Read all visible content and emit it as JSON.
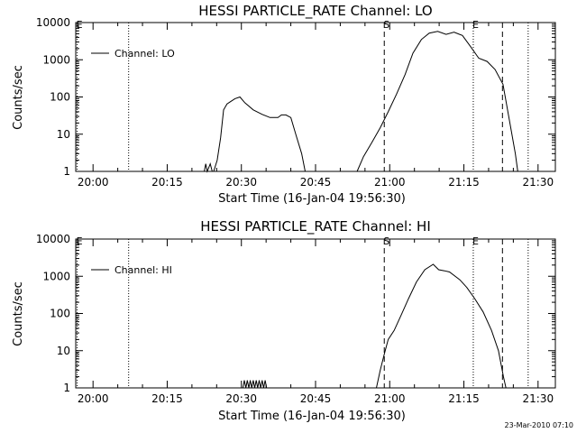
{
  "footer_timestamp": "23-Mar-2010 07:10",
  "chart_data": [
    {
      "type": "line",
      "title": "HESSI PARTICLE_RATE Channel: LO",
      "xlabel": "Start Time (16-Jan-04 19:56:30)",
      "ylabel": "Counts/sec",
      "legend": "Channel: LO",
      "legend_position": "top-left",
      "x_units": "minutes after 19:56:30",
      "xlim": [
        0,
        97
      ],
      "ylim": [
        1,
        10000
      ],
      "y_scale": "log",
      "x_ticks": [
        {
          "label": "20:00",
          "x": 3.5
        },
        {
          "label": "20:15",
          "x": 18.5
        },
        {
          "label": "20:30",
          "x": 33.5
        },
        {
          "label": "20:45",
          "x": 48.5
        },
        {
          "label": "21:00",
          "x": 63.5
        },
        {
          "label": "21:15",
          "x": 78.5
        },
        {
          "label": "21:30",
          "x": 93.5
        }
      ],
      "y_ticks": [
        {
          "label": "1",
          "y": 1
        },
        {
          "label": "10",
          "y": 10
        },
        {
          "label": "100",
          "y": 100
        },
        {
          "label": "1000",
          "y": 1000
        },
        {
          "label": "10000",
          "y": 10000
        }
      ],
      "markers": [
        {
          "x": 0.3,
          "style": "dotted",
          "label": "E"
        },
        {
          "x": 10.7,
          "style": "dotted",
          "label": ""
        },
        {
          "x": 62.4,
          "style": "dashed",
          "label": "S"
        },
        {
          "x": 80.4,
          "style": "dotted",
          "label": "E"
        },
        {
          "x": 86.3,
          "style": "dashed",
          "label": ""
        },
        {
          "x": 91.5,
          "style": "dotted",
          "label": ""
        }
      ],
      "series": [
        {
          "segments": [
            [
              [
                26,
                1
              ],
              [
                26.3,
                1.6
              ],
              [
                26.6,
                1
              ],
              [
                27.2,
                1.6
              ],
              [
                27.6,
                1
              ]
            ],
            [
              [
                27.9,
                1
              ],
              [
                28.6,
                2
              ],
              [
                29.3,
                8
              ],
              [
                29.9,
                45
              ],
              [
                30.6,
                65
              ],
              [
                32.2,
                90
              ],
              [
                33.2,
                100
              ],
              [
                34.2,
                70
              ],
              [
                35.9,
                45
              ],
              [
                37.7,
                34
              ],
              [
                39.3,
                28
              ],
              [
                40.9,
                28
              ],
              [
                41.6,
                33
              ],
              [
                42.5,
                33
              ],
              [
                43.5,
                28
              ],
              [
                44.6,
                9
              ],
              [
                45.7,
                3
              ],
              [
                46.4,
                1
              ]
            ],
            [
              [
                56.9,
                1
              ],
              [
                58.2,
                2.5
              ],
              [
                59.9,
                6
              ],
              [
                61.6,
                15
              ],
              [
                63.2,
                40
              ],
              [
                64.9,
                120
              ],
              [
                66.6,
                400
              ],
              [
                68.2,
                1500
              ],
              [
                69.9,
                3500
              ],
              [
                71.5,
                5200
              ],
              [
                73.2,
                5800
              ],
              [
                74.9,
                4800
              ],
              [
                76.5,
                5500
              ],
              [
                78.2,
                4500
              ],
              [
                79.8,
                2300
              ],
              [
                81.5,
                1100
              ],
              [
                83.2,
                900
              ],
              [
                84.8,
                550
              ],
              [
                86.4,
                220
              ],
              [
                88.1,
                12
              ],
              [
                88.9,
                3
              ],
              [
                89.4,
                1
              ]
            ]
          ]
        }
      ]
    },
    {
      "type": "line",
      "title": "HESSI PARTICLE_RATE Channel: HI",
      "xlabel": "Start Time (16-Jan-04 19:56:30)",
      "ylabel": "Counts/sec",
      "legend": "Channel: HI",
      "legend_position": "top-left",
      "x_units": "minutes after 19:56:30",
      "xlim": [
        0,
        97
      ],
      "ylim": [
        1,
        10000
      ],
      "y_scale": "log",
      "x_ticks": [
        {
          "label": "20:00",
          "x": 3.5
        },
        {
          "label": "20:15",
          "x": 18.5
        },
        {
          "label": "20:30",
          "x": 33.5
        },
        {
          "label": "20:45",
          "x": 48.5
        },
        {
          "label": "21:00",
          "x": 63.5
        },
        {
          "label": "21:15",
          "x": 78.5
        },
        {
          "label": "21:30",
          "x": 93.5
        }
      ],
      "y_ticks": [
        {
          "label": "1",
          "y": 1
        },
        {
          "label": "10",
          "y": 10
        },
        {
          "label": "100",
          "y": 100
        },
        {
          "label": "1000",
          "y": 1000
        },
        {
          "label": "10000",
          "y": 10000
        }
      ],
      "markers": [
        {
          "x": 0.3,
          "style": "dotted",
          "label": "E"
        },
        {
          "x": 10.7,
          "style": "dotted",
          "label": ""
        },
        {
          "x": 62.4,
          "style": "dashed",
          "label": "S"
        },
        {
          "x": 80.4,
          "style": "dotted",
          "label": "E"
        },
        {
          "x": 86.3,
          "style": "dashed",
          "label": ""
        },
        {
          "x": 91.5,
          "style": "dotted",
          "label": ""
        }
      ],
      "series": [
        {
          "segments": [
            [
              [
                33.8,
                1
              ],
              [
                34.1,
                1.6
              ],
              [
                34.4,
                1
              ],
              [
                34.7,
                1.6
              ],
              [
                35.0,
                1
              ],
              [
                35.3,
                1.6
              ],
              [
                35.6,
                1
              ],
              [
                35.9,
                1.6
              ],
              [
                36.2,
                1
              ],
              [
                36.5,
                1.6
              ],
              [
                36.8,
                1
              ],
              [
                37.1,
                1.6
              ],
              [
                37.4,
                1
              ],
              [
                37.7,
                1.6
              ],
              [
                38.0,
                1
              ],
              [
                38.3,
                1.6
              ],
              [
                38.6,
                1
              ]
            ],
            [
              [
                60.8,
                1
              ],
              [
                61.6,
                3
              ],
              [
                62.4,
                8
              ],
              [
                63.2,
                20
              ],
              [
                64.4,
                35
              ],
              [
                65.8,
                90
              ],
              [
                67.3,
                250
              ],
              [
                68.9,
                700
              ],
              [
                70.6,
                1500
              ],
              [
                72.3,
                2100
              ],
              [
                73.4,
                1500
              ],
              [
                74.6,
                1400
              ],
              [
                75.6,
                1300
              ],
              [
                77.7,
                800
              ],
              [
                79.1,
                500
              ],
              [
                80.7,
                250
              ],
              [
                82.4,
                110
              ],
              [
                84.1,
                35
              ],
              [
                85.5,
                10
              ],
              [
                86.5,
                2
              ],
              [
                87.0,
                1
              ]
            ]
          ]
        }
      ]
    }
  ]
}
